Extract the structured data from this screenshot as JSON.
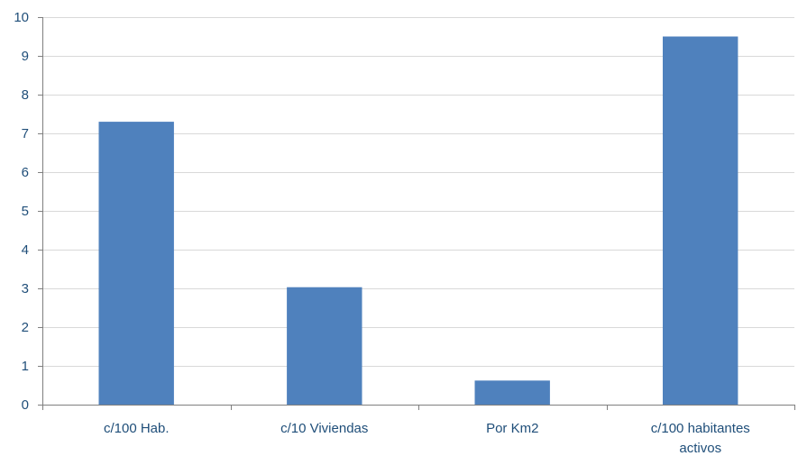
{
  "chart_data": {
    "type": "bar",
    "categories": [
      [
        "c/100 Hab."
      ],
      [
        "c/10 Viviendas"
      ],
      [
        "Por Km2"
      ],
      [
        "c/100 habitantes",
        "activos"
      ]
    ],
    "values": [
      7.3,
      3.03,
      0.62,
      9.5
    ],
    "ylim": [
      0,
      10
    ],
    "yticks": [
      "0",
      "1",
      "2",
      "3",
      "4",
      "5",
      "6",
      "7",
      "8",
      "9",
      "10"
    ],
    "grid": true,
    "legend": "none",
    "bar_color": "#4F81BD",
    "grid_color": "#D9D9D9",
    "axis_color": "#7F7F7F",
    "label_color": "#1F4E79"
  }
}
